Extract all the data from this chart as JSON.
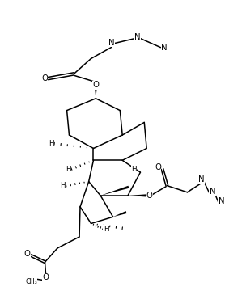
{
  "figsize": [
    2.78,
    3.81
  ],
  "dpi": 100,
  "bg": "#ffffff",
  "lc": "#000000",
  "lw": 1.1,
  "fs": 6.8,
  "xlim": [
    -1,
    11
  ],
  "ylim": [
    -1,
    13
  ]
}
